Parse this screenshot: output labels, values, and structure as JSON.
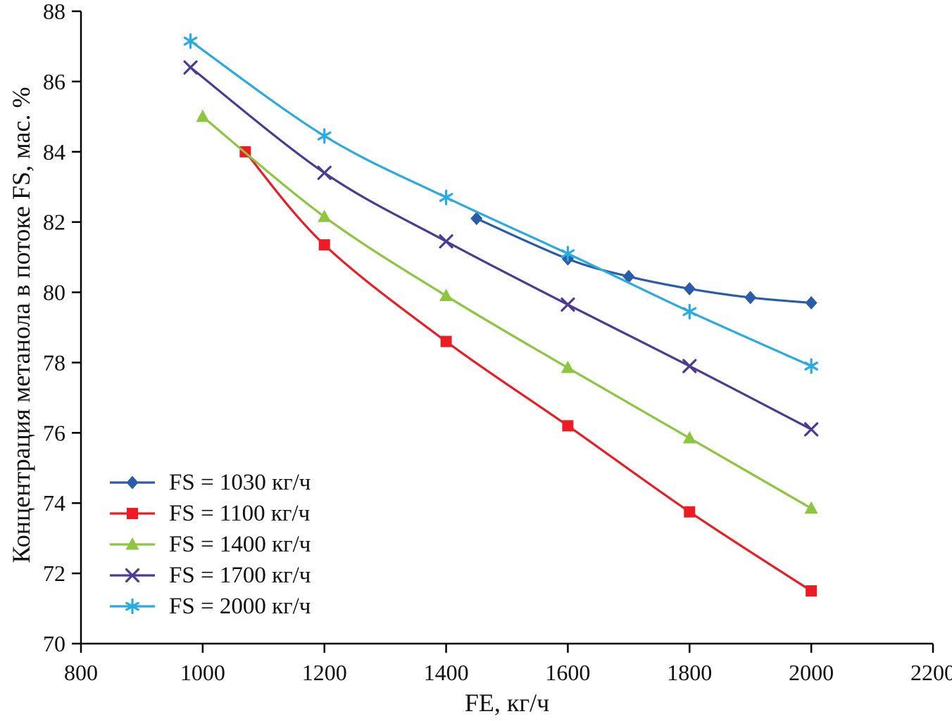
{
  "chart_data": {
    "type": "line",
    "title": "",
    "xlabel": "FE, кг/ч",
    "ylabel": "Концентрация метанола в потоке FS, мас. %",
    "xlim": [
      800,
      2200
    ],
    "ylim": [
      70,
      88
    ],
    "x_ticks": [
      800,
      1000,
      1200,
      1400,
      1600,
      1800,
      2000,
      2200
    ],
    "y_ticks": [
      70,
      72,
      74,
      76,
      78,
      80,
      82,
      84,
      86,
      88
    ],
    "grid": false,
    "legend_position": "lower-left",
    "series": [
      {
        "name": "FS = 1030 кг/ч",
        "color": "#2a5caa",
        "marker": "diamond",
        "x": [
          1450,
          1600,
          1700,
          1800,
          1900,
          2000
        ],
        "y": [
          82.1,
          80.95,
          80.45,
          80.1,
          79.85,
          79.7
        ]
      },
      {
        "name": "FS = 1100 кг/ч",
        "color": "#ed1c24",
        "marker": "square",
        "x": [
          1070,
          1200,
          1400,
          1600,
          1800,
          2000
        ],
        "y": [
          84.0,
          81.35,
          78.6,
          76.2,
          73.75,
          71.5
        ]
      },
      {
        "name": "FS = 1400 кг/ч",
        "color": "#8dc63f",
        "marker": "triangle",
        "x": [
          1000,
          1200,
          1400,
          1600,
          1800,
          2000
        ],
        "y": [
          85.0,
          82.15,
          79.9,
          77.85,
          75.85,
          73.85
        ]
      },
      {
        "name": "FS = 1700 кг/ч",
        "color": "#4d3a91",
        "marker": "x",
        "x": [
          980,
          1200,
          1400,
          1600,
          1800,
          2000
        ],
        "y": [
          86.4,
          83.4,
          81.45,
          79.65,
          77.9,
          76.1
        ]
      },
      {
        "name": "FS = 2000 кг/ч",
        "color": "#29abe2",
        "marker": "asterisk",
        "x": [
          980,
          1200,
          1400,
          1600,
          1800,
          2000
        ],
        "y": [
          87.15,
          84.45,
          82.7,
          81.1,
          79.45,
          77.9
        ]
      }
    ]
  }
}
